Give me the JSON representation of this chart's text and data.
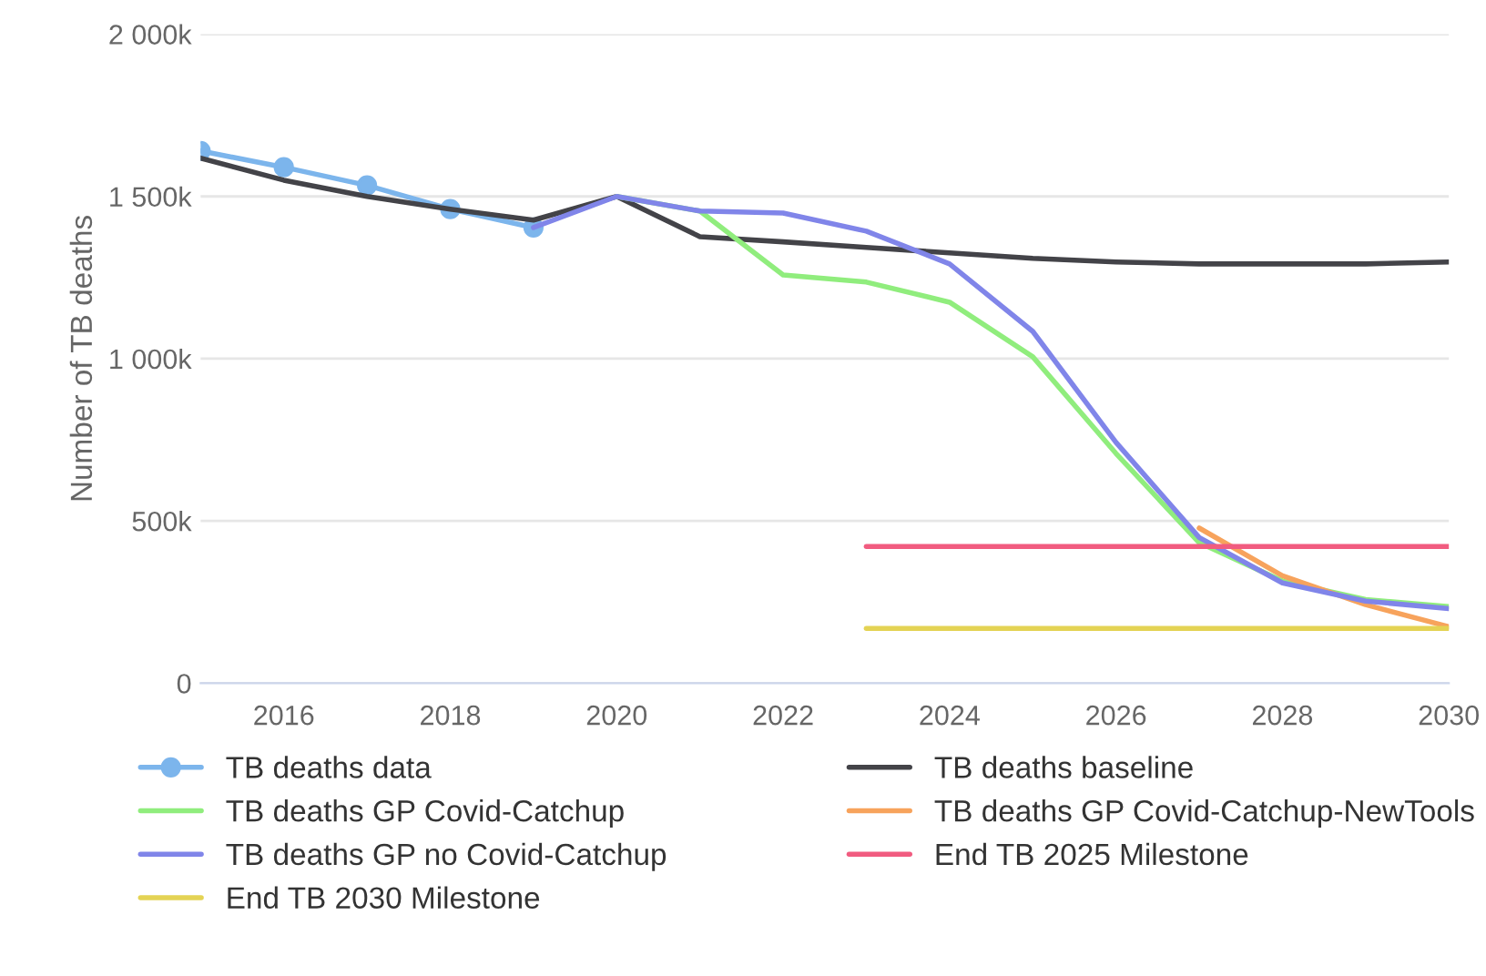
{
  "chart_data": {
    "type": "line",
    "ylabel": "Number of TB deaths",
    "xlim": [
      2015,
      2030
    ],
    "xticks": [
      2016,
      2018,
      2020,
      2022,
      2024,
      2026,
      2028,
      2030
    ],
    "ylim": [
      0,
      2000000
    ],
    "yticks": [
      {
        "value": 0,
        "label": "0"
      },
      {
        "value": 500000,
        "label": "500k"
      },
      {
        "value": 1000000,
        "label": "1 000k"
      },
      {
        "value": 1500000,
        "label": "1 500k"
      },
      {
        "value": 2000000,
        "label": "2 000k"
      }
    ],
    "grid": "y",
    "legend": "bottom",
    "line_style": "solid",
    "series": [
      {
        "name": "TB deaths data",
        "color": "#7cb5ec",
        "marker": "circle",
        "x": [
          2015,
          2016,
          2017,
          2018,
          2019
        ],
        "values": [
          1640000,
          1590000,
          1534000,
          1461000,
          1404000
        ]
      },
      {
        "name": "TB deaths baseline",
        "color": "#434348",
        "x": [
          2015,
          2016,
          2017,
          2018,
          2019,
          2020,
          2021,
          2022,
          2023,
          2024,
          2025,
          2026,
          2027,
          2028,
          2029,
          2030
        ],
        "values": [
          1618000,
          1550000,
          1500000,
          1461000,
          1427000,
          1500000,
          1376000,
          1360000,
          1343000,
          1326000,
          1309000,
          1298000,
          1292000,
          1292000,
          1292000,
          1298000
        ]
      },
      {
        "name": "TB deaths GP Covid-Catchup",
        "color": "#90ed7d",
        "x": [
          2020,
          2021,
          2022,
          2023,
          2024,
          2025,
          2026,
          2027,
          2028,
          2029,
          2030
        ],
        "values": [
          1500000,
          1455000,
          1258000,
          1236000,
          1174000,
          1006000,
          708000,
          433000,
          315000,
          258000,
          236000
        ]
      },
      {
        "name": "TB deaths GP Covid-Catchup-NewTools",
        "color": "#f7a35c",
        "x": [
          2027,
          2028,
          2029,
          2030
        ],
        "values": [
          478000,
          331000,
          242000,
          174000
        ]
      },
      {
        "name": "TB deaths GP no Covid-Catchup",
        "color": "#8085e9",
        "x": [
          2019,
          2020,
          2021,
          2022,
          2023,
          2024,
          2025,
          2026,
          2027,
          2028,
          2029,
          2030
        ],
        "values": [
          1404000,
          1500000,
          1455000,
          1449000,
          1393000,
          1292000,
          1084000,
          742000,
          449000,
          309000,
          253000,
          230000
        ]
      },
      {
        "name": "End TB 2025 Milestone",
        "color": "#f15c80",
        "x": [
          2023,
          2030
        ],
        "values": [
          421000,
          421000
        ]
      },
      {
        "name": "End TB 2030 Milestone",
        "color": "#e4d354",
        "x": [
          2023,
          2030
        ],
        "values": [
          169000,
          169000
        ]
      }
    ]
  }
}
